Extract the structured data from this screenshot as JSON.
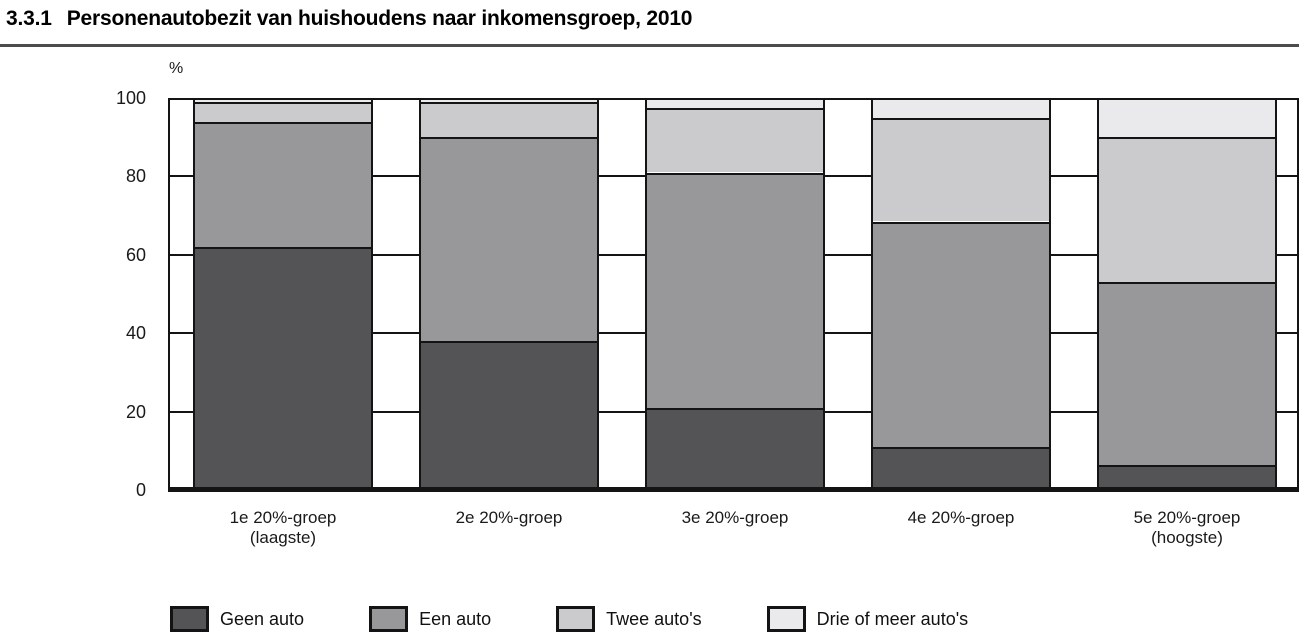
{
  "header": {
    "number": "3.3.1",
    "title": "Personenautobezit van huishoudens naar inkomensgroep, 2010"
  },
  "chart_data": {
    "type": "bar",
    "stacked": true,
    "title": "3.3.1 Personenautobezit van huishoudens naar inkomensgroep, 2010",
    "xlabel": "",
    "ylabel": "%",
    "ylim": [
      0,
      100
    ],
    "yticks": [
      0,
      20,
      40,
      60,
      80,
      100
    ],
    "grid": "tick-marks-in-white-gutters",
    "legend_position": "bottom",
    "categories": [
      {
        "label": "1e 20%-groep",
        "sublabel": "(laagste)"
      },
      {
        "label": "2e 20%-groep",
        "sublabel": ""
      },
      {
        "label": "3e 20%-groep",
        "sublabel": ""
      },
      {
        "label": "4e 20%-groep",
        "sublabel": ""
      },
      {
        "label": "5e 20%-groep",
        "sublabel": "(hoogste)"
      }
    ],
    "series": [
      {
        "name": "Geen auto",
        "color": "#545456",
        "values": [
          62,
          38,
          21,
          11,
          6.5
        ]
      },
      {
        "name": "Een auto",
        "color": "#98989a",
        "values": [
          32,
          52,
          60,
          57.5,
          46.5
        ]
      },
      {
        "name": "Twee auto's",
        "color": "#cbcbcd",
        "values": [
          5,
          9,
          16.5,
          26.5,
          37
        ]
      },
      {
        "name": "Drie of meer auto's",
        "color": "#eaeaec",
        "values": [
          1,
          1,
          2.5,
          5,
          10
        ]
      }
    ]
  },
  "colors": {
    "line": "#141414",
    "rule": "#4c4c4c",
    "background": "#ffffff"
  }
}
